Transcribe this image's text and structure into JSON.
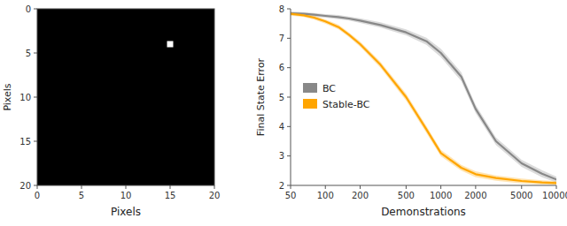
{
  "chart_data": [
    {
      "type": "scatter",
      "xlabel": "Pixels",
      "ylabel": "Pixels",
      "xlim": [
        0,
        20
      ],
      "ylim": [
        20,
        0
      ],
      "xticks": [
        0,
        5,
        10,
        15,
        20
      ],
      "yticks": [
        0,
        5,
        10,
        15,
        20
      ],
      "x": [
        15
      ],
      "values": [
        4
      ],
      "color": "#ffffff",
      "marker": "square"
    },
    {
      "type": "line",
      "log": "x",
      "xlabel": "Demonstrations",
      "ylabel": "Final State Error",
      "xlim": [
        50,
        10000
      ],
      "ylim": [
        2.0,
        8.0
      ],
      "xticks": [
        50,
        100,
        200,
        500,
        1000,
        2000,
        5000,
        10000
      ],
      "yticks": [
        2,
        3,
        4,
        5,
        6,
        7,
        8
      ],
      "legend": "center left",
      "x": [
        50,
        65,
        80,
        100,
        130,
        160,
        200,
        300,
        500,
        750,
        1000,
        1500,
        2000,
        3000,
        5000,
        7500,
        10000
      ],
      "series": [
        {
          "name": "BC",
          "color": "#888888",
          "values": [
            7.85,
            7.83,
            7.8,
            7.76,
            7.72,
            7.67,
            7.6,
            7.45,
            7.2,
            6.9,
            6.5,
            5.7,
            4.6,
            3.5,
            2.75,
            2.4,
            2.2
          ],
          "lower": [
            7.79,
            7.77,
            7.74,
            7.7,
            7.65,
            7.6,
            7.52,
            7.36,
            7.1,
            6.78,
            6.36,
            5.55,
            4.46,
            3.37,
            2.63,
            2.28,
            2.1
          ],
          "upper": [
            7.91,
            7.89,
            7.86,
            7.82,
            7.79,
            7.74,
            7.68,
            7.54,
            7.3,
            7.02,
            6.64,
            5.85,
            4.74,
            3.63,
            2.87,
            2.52,
            2.3
          ]
        },
        {
          "name": "Stable-BC",
          "color": "#FFA500",
          "values": [
            7.83,
            7.78,
            7.7,
            7.57,
            7.38,
            7.12,
            6.8,
            6.1,
            5.0,
            3.9,
            3.1,
            2.6,
            2.38,
            2.25,
            2.15,
            2.1,
            2.08
          ],
          "lower": [
            7.77,
            7.72,
            7.63,
            7.5,
            7.3,
            7.04,
            6.71,
            6.0,
            4.88,
            3.78,
            2.99,
            2.5,
            2.28,
            2.16,
            2.07,
            2.03,
            2.02
          ],
          "upper": [
            7.89,
            7.84,
            7.77,
            7.64,
            7.46,
            7.2,
            6.89,
            6.2,
            5.12,
            4.02,
            3.21,
            2.7,
            2.48,
            2.34,
            2.23,
            2.17,
            2.14
          ]
        }
      ]
    }
  ]
}
